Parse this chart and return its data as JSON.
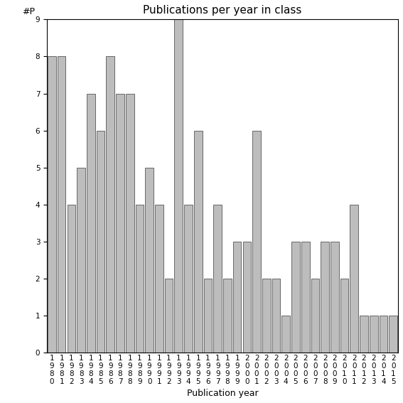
{
  "title": "Publications per year in class",
  "xlabel": "Publication year",
  "ylabel": "#P",
  "categories": [
    "1980",
    "1981",
    "1982",
    "1983",
    "1984",
    "1985",
    "1986",
    "1987",
    "1988",
    "1989",
    "1990",
    "1991",
    "1992",
    "1993",
    "1994",
    "1995",
    "1996",
    "1997",
    "1998",
    "1999",
    "2000",
    "2001",
    "2002",
    "2003",
    "2004",
    "2005",
    "2006",
    "2007",
    "2008",
    "2009",
    "2010",
    "2011",
    "2012",
    "2013",
    "2014",
    "2015"
  ],
  "values": [
    8,
    8,
    4,
    5,
    7,
    6,
    8,
    7,
    7,
    4,
    5,
    4,
    2,
    9,
    4,
    6,
    2,
    4,
    2,
    3,
    3,
    6,
    2,
    2,
    1,
    3,
    3,
    2,
    3,
    3,
    2,
    4,
    1,
    1,
    1,
    1
  ],
  "bar_color": "#bdbdbd",
  "bar_edge_color": "#555555",
  "ylim_max": 9,
  "yticks": [
    0,
    1,
    2,
    3,
    4,
    5,
    6,
    7,
    8,
    9
  ],
  "title_fontsize": 11,
  "axis_label_fontsize": 9,
  "tick_fontsize": 7.5
}
